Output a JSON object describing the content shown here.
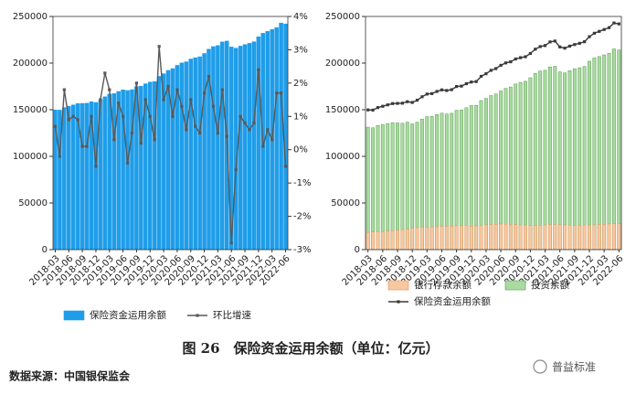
{
  "chart_data": [
    {
      "type": "bar",
      "bar_mode": "overlap",
      "legend": "bottom",
      "grid": false,
      "categories": [
        "2018-03",
        null,
        null,
        "2018-06",
        null,
        null,
        "2018-09",
        null,
        null,
        "2018-12",
        null,
        null,
        "2019-03",
        null,
        null,
        "2019-06",
        null,
        null,
        "2019-09",
        null,
        null,
        "2019-12",
        null,
        null,
        "2020-03",
        null,
        null,
        "2020-06",
        null,
        null,
        "2020-09",
        null,
        null,
        "2020-12",
        null,
        null,
        "2021-03",
        null,
        null,
        "2021-06",
        null,
        null,
        "2021-09",
        null,
        null,
        "2021-12",
        null,
        null,
        "2022-03",
        null,
        null,
        "2022-06"
      ],
      "ylim": [
        0,
        250000
      ],
      "yticks": [
        0,
        50000,
        100000,
        150000,
        200000,
        250000
      ],
      "y2lim": [
        -3,
        4
      ],
      "y2ticks": [
        {
          "value": -3,
          "label": "-3%"
        },
        {
          "value": -2,
          "label": "-2%"
        },
        {
          "value": -1,
          "label": "-1%"
        },
        {
          "value": 0,
          "label": "0%"
        },
        {
          "value": 1,
          "label": "1%"
        },
        {
          "value": 2,
          "label": "2%"
        },
        {
          "value": 3,
          "label": "3%"
        },
        {
          "value": 4,
          "label": "4%"
        }
      ],
      "series": [
        {
          "name": "保险资金运用余额",
          "kind": "bar",
          "color": "#1f9de9",
          "edgecolor": "#1f9de9",
          "values": [
            149800,
            149600,
            152300,
            153700,
            155200,
            156600,
            156800,
            157000,
            158600,
            157800,
            160200,
            163900,
            166800,
            167300,
            169600,
            171300,
            170600,
            171500,
            174900,
            175300,
            177900,
            179700,
            180200,
            185800,
            188600,
            192200,
            194100,
            197600,
            200200,
            201400,
            204400,
            205800,
            206800,
            210300,
            214900,
            217700,
            218800,
            222700,
            223600,
            217300,
            216000,
            218200,
            219900,
            221200,
            222900,
            228300,
            232000,
            234000,
            236000,
            238000,
            243000,
            242000
          ]
        },
        {
          "name": "环比增速",
          "kind": "line",
          "axis": "y2",
          "color": "#595959",
          "values": [
            0.7,
            -0.2,
            1.8,
            0.9,
            1.0,
            0.9,
            0.1,
            0.1,
            1.0,
            -0.5,
            1.5,
            2.3,
            1.8,
            0.3,
            1.4,
            1.0,
            -0.4,
            0.5,
            2.0,
            0.2,
            1.5,
            1.0,
            0.3,
            3.1,
            1.5,
            1.9,
            1.0,
            1.8,
            1.3,
            0.6,
            1.5,
            0.7,
            0.5,
            1.7,
            2.2,
            1.3,
            0.5,
            1.8,
            0.4,
            -2.8,
            -0.6,
            1.0,
            0.8,
            0.6,
            0.8,
            2.4,
            0.1,
            0.6,
            0.3,
            1.7,
            1.7,
            -0.5
          ]
        }
      ]
    },
    {
      "type": "bar",
      "bar_mode": "overlap",
      "legend": "bottom",
      "grid": false,
      "categories": [
        "2018-03",
        null,
        null,
        "2018-06",
        null,
        null,
        "2018-09",
        null,
        null,
        "2018-12",
        null,
        null,
        "2019-03",
        null,
        null,
        "2019-06",
        null,
        null,
        "2019-09",
        null,
        null,
        "2019-12",
        null,
        null,
        "2020-03",
        null,
        null,
        "2020-06",
        null,
        null,
        "2020-09",
        null,
        null,
        "2020-12",
        null,
        null,
        "2021-03",
        null,
        null,
        "2021-06",
        null,
        null,
        "2021-09",
        null,
        null,
        "2021-12",
        null,
        null,
        "2022-03",
        null,
        null,
        "2022-06"
      ],
      "ylim": [
        0,
        250000
      ],
      "yticks": [
        0,
        50000,
        100000,
        150000,
        200000,
        250000
      ],
      "series": [
        {
          "name": "投资余额",
          "kind": "bar",
          "color": "#a9dba0",
          "edgecolor": "#5a9a50",
          "values": [
            131300,
            130600,
            133100,
            134200,
            135200,
            136100,
            135800,
            135500,
            136600,
            134800,
            136700,
            139900,
            142600,
            142800,
            144900,
            146300,
            145400,
            146200,
            149400,
            149700,
            152100,
            154500,
            154700,
            159800,
            162100,
            165200,
            166900,
            170100,
            172900,
            174400,
            177600,
            179300,
            180500,
            184300,
            188900,
            191500,
            192300,
            195900,
            196600,
            190600,
            189500,
            191900,
            193900,
            195000,
            196400,
            202000,
            205500,
            207000,
            208800,
            210500,
            215200,
            214000
          ]
        },
        {
          "name": "银行存款余额",
          "kind": "bar",
          "color": "#f8c8a0",
          "edgecolor": "#d9925a",
          "values": [
            18500,
            19000,
            19200,
            19500,
            20000,
            20500,
            21000,
            21500,
            22000,
            23000,
            23500,
            24000,
            24200,
            24500,
            24700,
            25000,
            25200,
            25300,
            25500,
            25600,
            25800,
            25200,
            25500,
            26000,
            26500,
            27000,
            27200,
            27500,
            27300,
            27000,
            26800,
            26500,
            26300,
            26000,
            26000,
            26200,
            26500,
            26800,
            27000,
            26700,
            26500,
            26300,
            26000,
            26200,
            26500,
            26300,
            26500,
            27000,
            27200,
            27500,
            27800,
            28000
          ]
        },
        {
          "name": "保险资金运用余额",
          "kind": "line",
          "color": "#3a3a3a",
          "values": [
            149800,
            149600,
            152300,
            153700,
            155200,
            156600,
            156800,
            157000,
            158600,
            157800,
            160200,
            163900,
            166800,
            167300,
            169600,
            171300,
            170600,
            171500,
            174900,
            175300,
            177900,
            179700,
            180200,
            185800,
            188600,
            192200,
            194100,
            197600,
            200200,
            201400,
            204400,
            205800,
            206800,
            210300,
            214900,
            217700,
            218800,
            222700,
            223600,
            217300,
            216000,
            218200,
            219900,
            221200,
            222900,
            228300,
            232000,
            234000,
            236000,
            238000,
            243000,
            242000
          ]
        }
      ]
    }
  ],
  "caption": "图 26　保险资金运用余额（单位：亿元）",
  "source": "数据来源：中国银保监会",
  "watermark": "普益标准"
}
